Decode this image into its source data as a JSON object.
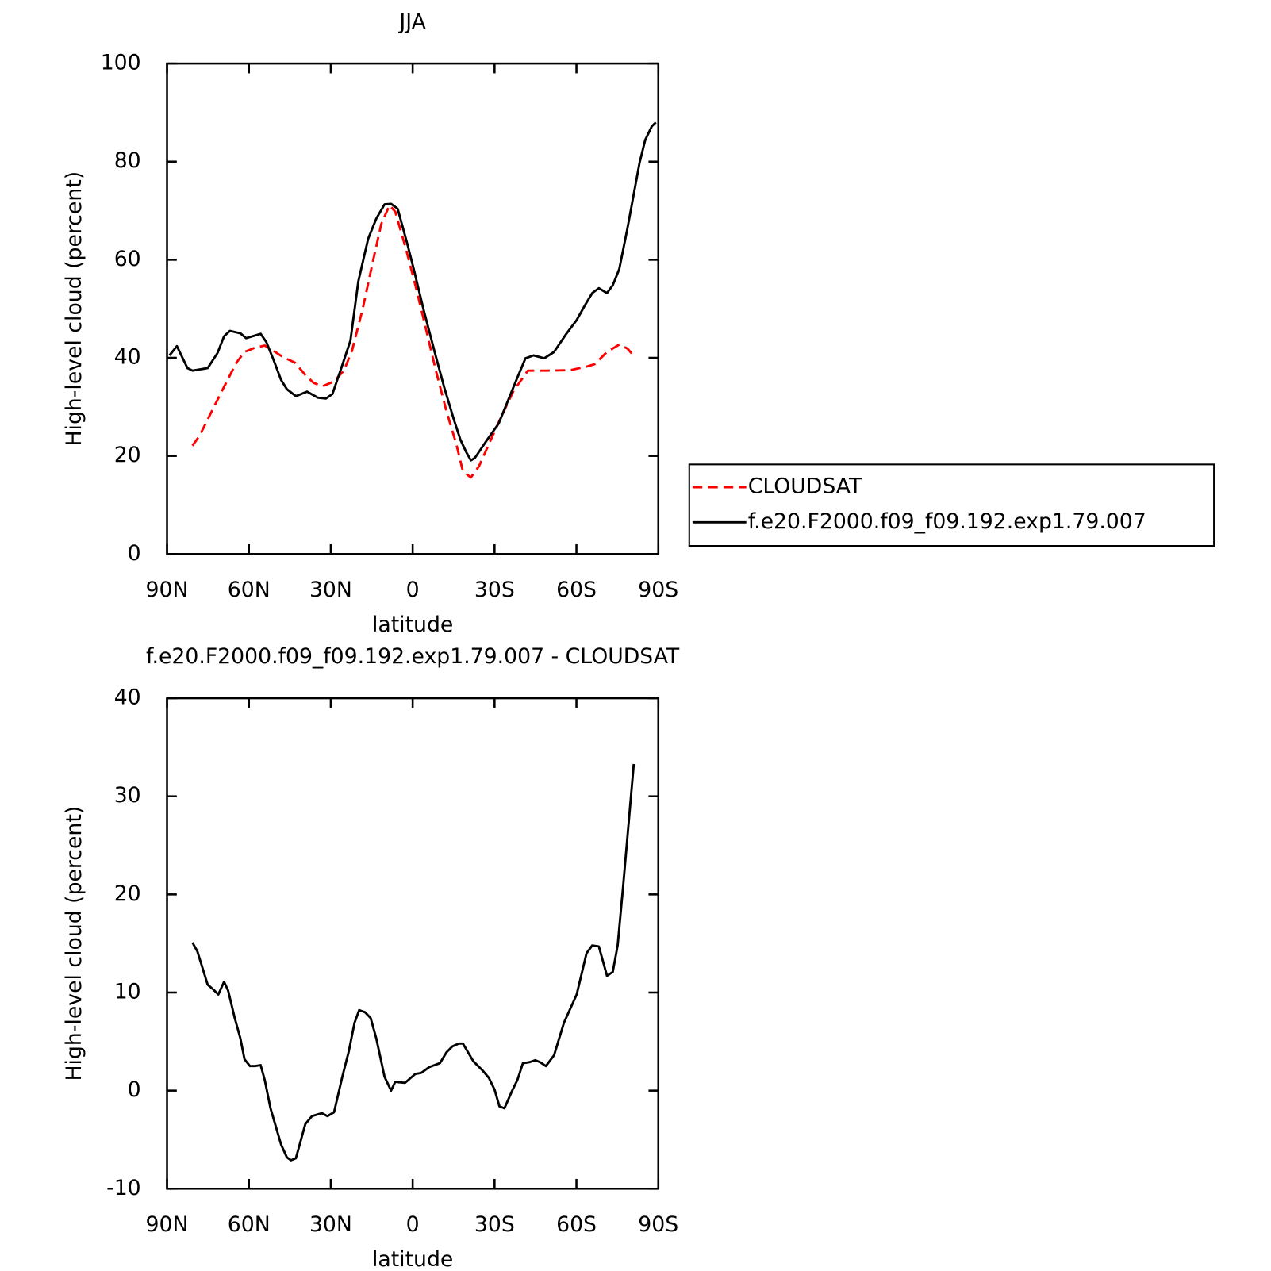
{
  "chart_data": [
    {
      "type": "line",
      "title": "JJA",
      "xlabel": "latitude",
      "ylabel": "High-level cloud (percent)",
      "xlim": [
        90,
        -90
      ],
      "xticks": [
        {
          "value": 90,
          "label": "90N"
        },
        {
          "value": 60,
          "label": "60N"
        },
        {
          "value": 30,
          "label": "30N"
        },
        0,
        {
          "value": -30,
          "label": "30S"
        },
        {
          "value": -60,
          "label": "60S"
        },
        {
          "value": -90,
          "label": "90S"
        }
      ],
      "ylim": [
        0,
        100
      ],
      "yticks": [
        0,
        20,
        40,
        60,
        80,
        100
      ],
      "legend": "right",
      "series": [
        {
          "name": "CLOUDSAT",
          "color": "#ff0000",
          "dashed": true,
          "x": [
            80.7,
            78.1,
            73.6,
            69.1,
            64.6,
            61.6,
            58.1,
            54.2,
            51.2,
            47.6,
            43.1,
            39.3,
            36.3,
            33.0,
            28.8,
            25.2,
            22.2,
            18.4,
            14.5,
            11.5,
            8.5,
            6.4,
            2.5,
            -1.0,
            -4.6,
            -8.5,
            -12.4,
            -16.0,
            -18.4,
            -21.3,
            -24.3,
            -27.9,
            -32.4,
            -36.9,
            -42.2,
            -48.8,
            -57.8,
            -63.7,
            -66.7,
            -71.2,
            -75.7,
            -78.7,
            -81.0
          ],
          "values": [
            22.1,
            24.1,
            29.1,
            34.1,
            39.0,
            41.2,
            42.0,
            42.5,
            41.5,
            40.2,
            39.0,
            36.5,
            34.9,
            34.2,
            35.2,
            37.4,
            41.5,
            49.8,
            59.8,
            67.3,
            71.1,
            69.8,
            62.3,
            54.8,
            46.5,
            37.4,
            29.1,
            22.4,
            16.9,
            15.6,
            17.9,
            22.4,
            27.9,
            33.2,
            37.4,
            37.4,
            37.5,
            38.2,
            38.7,
            41.2,
            42.7,
            41.9,
            40.4
          ]
        },
        {
          "name": "f.e20.F2000.f09_f09.192.exp1.79.007",
          "color": "#000000",
          "dashed": false,
          "x": [
            89.1,
            86.4,
            82.5,
            80.7,
            75.1,
            71.5,
            69.1,
            67.0,
            63.1,
            61.0,
            55.7,
            53.6,
            51.2,
            48.2,
            46.1,
            42.8,
            38.7,
            34.8,
            31.8,
            29.4,
            25.8,
            22.8,
            19.9,
            16.3,
            13.3,
            10.3,
            7.9,
            5.5,
            1.9,
            -0.4,
            -4.0,
            -7.9,
            -11.5,
            -15.1,
            -17.5,
            -19.6,
            -21.3,
            -22.8,
            -27.3,
            -31.5,
            -33.9,
            -37.8,
            -41.3,
            -44.3,
            -48.2,
            -51.8,
            -56.3,
            -60.1,
            -63.1,
            -65.8,
            -68.2,
            -71.2,
            -73.3,
            -75.7,
            -78.7,
            -83.1,
            -85.2,
            -87.6,
            -89.1
          ],
          "values": [
            40.5,
            42.4,
            37.9,
            37.4,
            37.9,
            41.0,
            44.4,
            45.5,
            45.0,
            44.0,
            44.9,
            43.2,
            39.9,
            35.5,
            33.6,
            32.2,
            33.1,
            31.9,
            31.7,
            32.6,
            38.5,
            43.5,
            55.6,
            64.3,
            68.4,
            71.3,
            71.4,
            70.4,
            63.1,
            58.1,
            49.8,
            41.5,
            34.1,
            27.4,
            23.3,
            20.8,
            19.1,
            19.6,
            23.3,
            26.6,
            29.9,
            35.2,
            39.9,
            40.5,
            39.9,
            41.2,
            44.9,
            47.7,
            50.7,
            53.2,
            54.2,
            53.2,
            54.8,
            58.1,
            66.4,
            79.7,
            84.4,
            87.2,
            88.0
          ]
        }
      ]
    },
    {
      "type": "line",
      "title": "f.e20.F2000.f09_f09.192.exp1.79.007 - CLOUDSAT",
      "xlabel": "latitude",
      "ylabel": "High-level cloud (percent)",
      "xlim": [
        90,
        -90
      ],
      "xticks": [
        {
          "value": 90,
          "label": "90N"
        },
        {
          "value": 60,
          "label": "60N"
        },
        {
          "value": 30,
          "label": "30N"
        },
        0,
        {
          "value": -30,
          "label": "30S"
        },
        {
          "value": -60,
          "label": "60S"
        },
        {
          "value": -90,
          "label": "90S"
        }
      ],
      "ylim": [
        -10,
        40
      ],
      "yticks": [
        -10,
        0,
        10,
        20,
        30,
        40
      ],
      "series": [
        {
          "color": "#000000",
          "dashed": false,
          "x": [
            80.7,
            78.9,
            75.1,
            73.0,
            71.2,
            69.1,
            67.6,
            65.2,
            63.1,
            61.6,
            59.6,
            57.8,
            55.7,
            54.2,
            52.1,
            48.2,
            46.1,
            44.6,
            42.8,
            39.3,
            36.9,
            33.3,
            31.2,
            28.8,
            25.8,
            23.4,
            21.3,
            19.6,
            17.5,
            15.4,
            13.3,
            10.3,
            7.9,
            6.4,
            2.8,
            -1.0,
            -3.1,
            -6.1,
            -10.0,
            -12.4,
            -14.5,
            -16.9,
            -18.4,
            -22.2,
            -25.8,
            -27.9,
            -30.0,
            -31.8,
            -33.6,
            -36.3,
            -38.4,
            -40.4,
            -42.8,
            -44.9,
            -46.7,
            -48.8,
            -51.8,
            -55.4,
            -60.1,
            -63.7,
            -65.8,
            -68.2,
            -71.2,
            -73.3,
            -75.1,
            -77.2,
            -81.0
          ],
          "values": [
            15.1,
            14.2,
            10.8,
            10.3,
            9.8,
            11.1,
            10.2,
            7.4,
            5.3,
            3.2,
            2.5,
            2.5,
            2.6,
            1.1,
            -1.8,
            -5.5,
            -6.8,
            -7.1,
            -6.9,
            -3.4,
            -2.6,
            -2.3,
            -2.6,
            -2.2,
            1.4,
            4.0,
            6.9,
            8.2,
            8.0,
            7.4,
            5.3,
            1.4,
            0.0,
            0.9,
            0.8,
            1.7,
            1.8,
            2.4,
            2.8,
            3.9,
            4.5,
            4.8,
            4.8,
            3.0,
            2.0,
            1.3,
            0.1,
            -1.6,
            -1.8,
            -0.1,
            1.1,
            2.8,
            2.9,
            3.1,
            2.9,
            2.5,
            3.6,
            6.9,
            9.8,
            14.0,
            14.8,
            14.7,
            11.7,
            12.1,
            14.8,
            21.1,
            33.3
          ]
        }
      ]
    }
  ]
}
